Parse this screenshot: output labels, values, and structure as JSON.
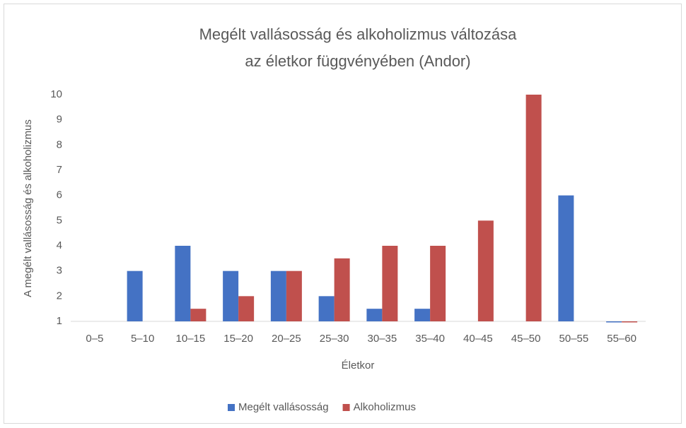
{
  "chart_data": {
    "type": "bar",
    "title": [
      "Megélt vallásosság és alkoholizmus változása",
      "az életkor függvényében (Andor)"
    ],
    "x_label": "Életkor",
    "y_label": "A megélt vallásosság és alkoholizmus",
    "categories": [
      "0–5",
      "5–10",
      "10–15",
      "15–20",
      "20–25",
      "25–30",
      "30–35",
      "35–40",
      "40–45",
      "45–50",
      "50–55",
      "55–60"
    ],
    "series": [
      {
        "name": "Megélt vallásosság",
        "color": "#4472c4",
        "values": [
          null,
          3,
          4,
          3,
          3,
          2,
          1.5,
          1.5,
          null,
          null,
          6,
          1
        ]
      },
      {
        "name": "Alkoholizmus",
        "color": "#c0504d",
        "values": [
          null,
          null,
          1.5,
          2,
          3,
          3.5,
          4,
          4,
          5,
          10,
          null,
          1
        ]
      }
    ],
    "ylim": [
      1,
      10
    ],
    "yticks": [
      1,
      2,
      3,
      4,
      5,
      6,
      7,
      8,
      9,
      10
    ],
    "legend": "bottom"
  }
}
